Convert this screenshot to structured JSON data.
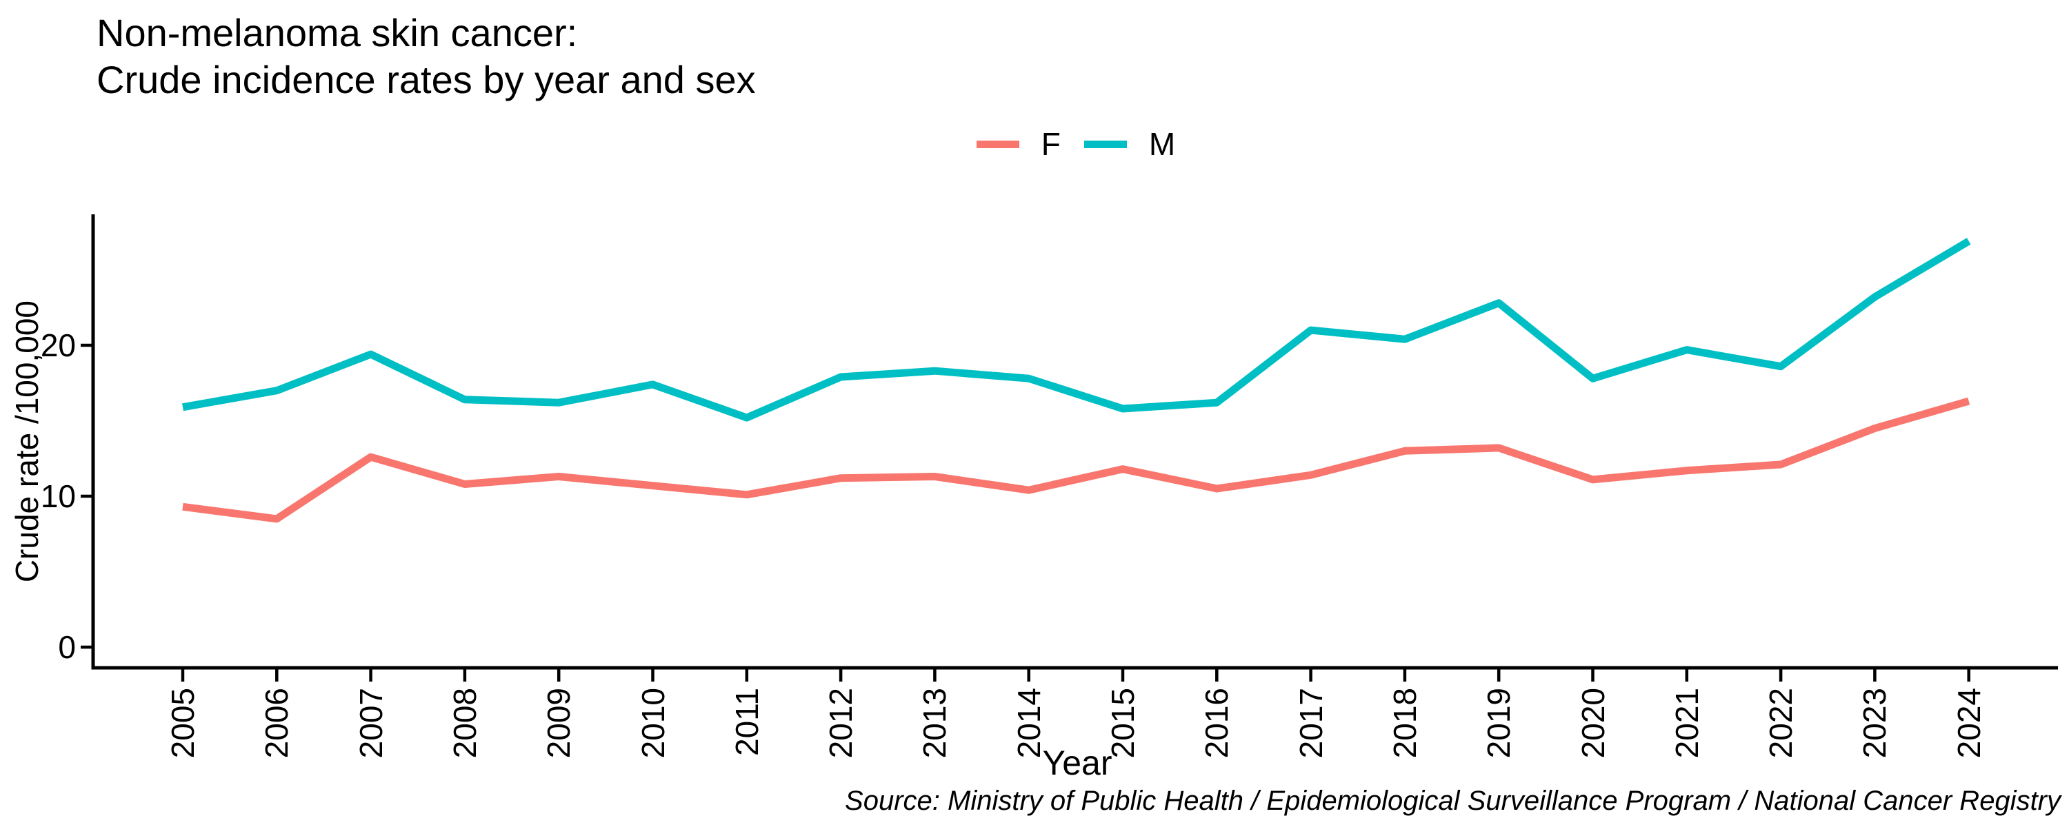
{
  "title": {
    "line1": "Non-melanoma skin cancer:",
    "line2": "Crude incidence rates by year and sex"
  },
  "legend": {
    "items": [
      {
        "label": "F",
        "color": "#F8766D"
      },
      {
        "label": "M",
        "color": "#00BFC4"
      }
    ]
  },
  "y_axis": {
    "label": "Crude rate /100,000"
  },
  "x_axis": {
    "label": "Year"
  },
  "source_note": "Source: Ministry of Public Health / Epidemiological Surveillance Program / National Cancer Registry",
  "chart_data": {
    "type": "line",
    "x": [
      2005,
      2006,
      2007,
      2008,
      2009,
      2010,
      2011,
      2012,
      2013,
      2014,
      2015,
      2016,
      2017,
      2018,
      2019,
      2020,
      2021,
      2022,
      2023,
      2024
    ],
    "series": [
      {
        "name": "F",
        "color": "#F8766D",
        "values": [
          9.3,
          8.5,
          12.6,
          10.8,
          11.3,
          10.7,
          10.1,
          11.2,
          11.3,
          10.4,
          11.8,
          10.5,
          11.4,
          13.0,
          13.2,
          11.1,
          11.7,
          12.1,
          14.5,
          16.3
        ]
      },
      {
        "name": "M",
        "color": "#00BFC4",
        "values": [
          15.9,
          17.0,
          19.4,
          16.4,
          16.2,
          17.4,
          15.2,
          17.9,
          18.3,
          17.8,
          15.8,
          16.2,
          21.0,
          20.4,
          22.8,
          17.8,
          19.7,
          18.6,
          23.2,
          26.9
        ]
      }
    ],
    "title": "Non-melanoma skin cancer: Crude incidence rates by year and sex",
    "xlabel": "Year",
    "ylabel": "Crude rate /100,000",
    "ylim": [
      0,
      28.6
    ],
    "yticks": [
      0,
      10,
      20
    ],
    "grid": false,
    "legend_position": "top-center"
  }
}
